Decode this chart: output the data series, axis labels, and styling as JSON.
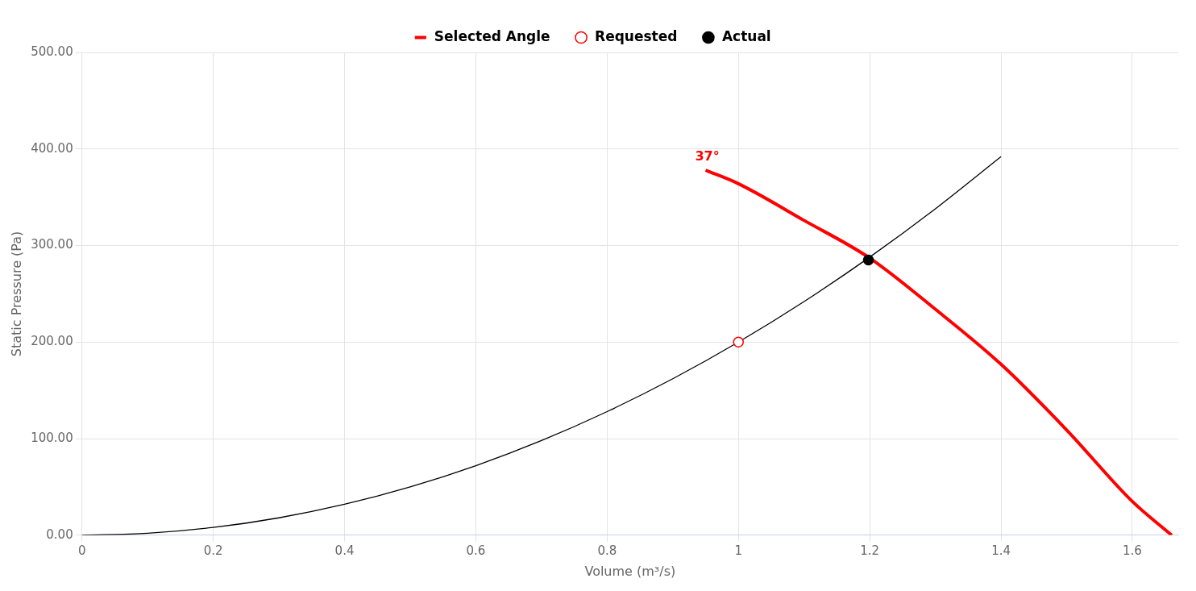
{
  "chart_data": {
    "type": "line",
    "xlabel": "Volume (m³/s)",
    "ylabel": "Static Pressure (Pa)",
    "xlim": [
      0,
      1.67
    ],
    "xticks": [
      0,
      0.2,
      0.4,
      0.6,
      0.8,
      1,
      1.2,
      1.4,
      1.6
    ],
    "ylim": [
      0,
      500
    ],
    "yticks": [
      {
        "value": 0,
        "label": "0.00"
      },
      {
        "value": 100,
        "label": "100.00"
      },
      {
        "value": 200,
        "label": "200.00"
      },
      {
        "value": 300,
        "label": "300.00"
      },
      {
        "value": 400,
        "label": "400.00"
      },
      {
        "value": 500,
        "label": "500.00"
      }
    ],
    "grid": true,
    "legend": "top",
    "series": [
      {
        "name": "Selected Angle",
        "color": "#ff0000",
        "marker": "none",
        "x": [
          0.95,
          1.0,
          1.1,
          1.2,
          1.3,
          1.4,
          1.5,
          1.6,
          1.66
        ],
        "values": [
          378,
          364,
          326,
          287,
          234,
          177,
          109,
          35,
          0
        ]
      },
      {
        "color": "#000000",
        "marker": "none",
        "x": [
          0,
          0.1,
          0.2,
          0.3,
          0.4,
          0.5,
          0.6,
          0.7,
          0.8,
          0.9,
          1.0,
          1.1,
          1.2,
          1.3,
          1.4
        ],
        "values": [
          0,
          2,
          8,
          18,
          32,
          50,
          72,
          98,
          128,
          162,
          200,
          242,
          288,
          338,
          392
        ]
      },
      {
        "name": "Requested",
        "type": "scatter",
        "color": "#ff0000",
        "marker": "circle",
        "x": [
          1.0
        ],
        "values": [
          200
        ]
      },
      {
        "name": "Actual",
        "type": "scatter",
        "color": "#000000",
        "marker": "circle",
        "x": [
          1.198
        ],
        "values": [
          285
        ]
      }
    ],
    "annotations": [
      {
        "text": "37°",
        "x": 0.95,
        "y": 378
      }
    ]
  }
}
